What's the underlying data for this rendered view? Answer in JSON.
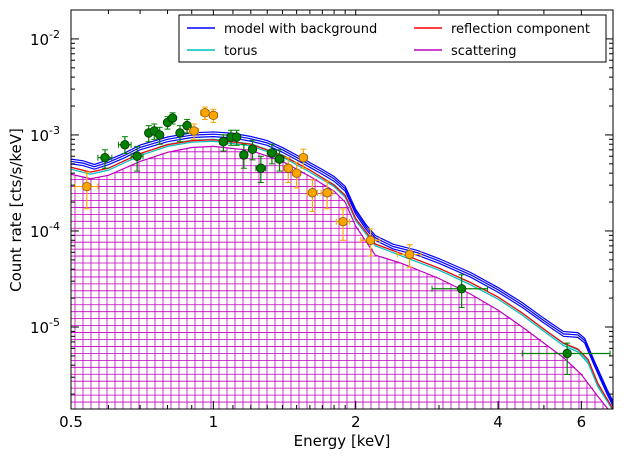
{
  "chart_data": {
    "type": "scatter",
    "xlabel": "Energy [keV]",
    "ylabel": "Count rate [cts/s/keV]",
    "xscale": "log",
    "yscale": "log",
    "xlim": [
      0.5,
      7.0
    ],
    "ylim": [
      1.4e-06,
      0.02
    ],
    "x_ticks": [
      {
        "value": 0.5,
        "label": "0.5"
      },
      {
        "value": 1,
        "label": "1"
      },
      {
        "value": 2,
        "label": "2"
      },
      {
        "value": 4,
        "label": "4"
      },
      {
        "value": 6,
        "label": "6"
      }
    ],
    "y_ticks": [
      {
        "value": 1e-05,
        "base": "10",
        "exp": "-5"
      },
      {
        "value": 0.0001,
        "base": "10",
        "exp": "-4"
      },
      {
        "value": 0.001,
        "base": "10",
        "exp": "-3"
      },
      {
        "value": 0.01,
        "base": "10",
        "exp": "-2"
      }
    ],
    "legend": {
      "position": "top-right",
      "columns": 2,
      "entries": [
        {
          "label": "model with background",
          "color": "#0000ff"
        },
        {
          "label": "reflection component",
          "color": "#ff0000"
        },
        {
          "label": "torus",
          "color": "#00bfbf"
        },
        {
          "label": "scattering",
          "color": "#bf00bf"
        }
      ]
    },
    "model_curves": [
      {
        "name": "model with background",
        "color": "#0000ff",
        "points": [
          [
            0.5,
            0.0005
          ],
          [
            0.53,
            0.00048
          ],
          [
            0.56,
            0.00044
          ],
          [
            0.6,
            0.00049
          ],
          [
            0.65,
            0.00058
          ],
          [
            0.7,
            0.0007
          ],
          [
            0.8,
            0.00085
          ],
          [
            0.9,
            0.00094
          ],
          [
            1.0,
            0.00096
          ],
          [
            1.1,
            0.00093
          ],
          [
            1.2,
            0.00086
          ],
          [
            1.3,
            0.00078
          ],
          [
            1.4,
            0.00066
          ],
          [
            1.5,
            0.00055
          ],
          [
            1.6,
            0.00046
          ],
          [
            1.7,
            0.00039
          ],
          [
            1.8,
            0.00033
          ],
          [
            1.9,
            0.00026
          ],
          [
            2.0,
            0.00015
          ],
          [
            2.1,
            0.000105
          ],
          [
            2.2,
            8e-05
          ],
          [
            2.4,
            6.5e-05
          ],
          [
            2.7,
            5.6e-05
          ],
          [
            3.0,
            4.6e-05
          ],
          [
            3.5,
            3.3e-05
          ],
          [
            4.0,
            2.3e-05
          ],
          [
            4.5,
            1.6e-05
          ],
          [
            5.0,
            1.1e-05
          ],
          [
            5.5,
            8e-06
          ],
          [
            5.9,
            7.8e-06
          ],
          [
            6.1,
            6.8e-06
          ],
          [
            6.4,
            3.9e-06
          ],
          [
            6.8,
            2e-06
          ],
          [
            7.0,
            1.5e-06
          ]
        ]
      },
      {
        "name": "reflection component",
        "color": "#ff0000",
        "points": [
          [
            0.5,
            0.00046
          ],
          [
            0.55,
            0.00041
          ],
          [
            0.6,
            0.00045
          ],
          [
            0.7,
            0.00064
          ],
          [
            0.8,
            0.00079
          ],
          [
            0.9,
            0.00087
          ],
          [
            1.0,
            0.00089
          ],
          [
            1.2,
            0.0008
          ],
          [
            1.4,
            0.00061
          ],
          [
            1.6,
            0.00043
          ],
          [
            1.8,
            0.0003
          ],
          [
            1.9,
            0.000235
          ],
          [
            2.0,
            0.000135
          ],
          [
            2.2,
            7.3e-05
          ],
          [
            2.5,
            5.8e-05
          ],
          [
            3.0,
            4.1e-05
          ],
          [
            3.5,
            2.9e-05
          ],
          [
            4.0,
            2.05e-05
          ],
          [
            4.5,
            1.4e-05
          ],
          [
            5.0,
            9.5e-06
          ],
          [
            5.5,
            6.8e-06
          ],
          [
            5.9,
            5.9e-06
          ],
          [
            6.2,
            4.6e-06
          ],
          [
            6.5,
            2.6e-06
          ],
          [
            7.0,
            1.4e-06
          ]
        ]
      },
      {
        "name": "torus",
        "color": "#00bfbf",
        "points": [
          [
            0.5,
            0.00044
          ],
          [
            0.55,
            0.00039
          ],
          [
            0.6,
            0.00043
          ],
          [
            0.7,
            0.00061
          ],
          [
            0.8,
            0.00076
          ],
          [
            0.9,
            0.00084
          ],
          [
            1.0,
            0.00086
          ],
          [
            1.2,
            0.00077
          ],
          [
            1.4,
            0.00059
          ],
          [
            1.6,
            0.00041
          ],
          [
            1.8,
            0.00029
          ],
          [
            1.9,
            0.000225
          ],
          [
            2.0,
            0.000128
          ],
          [
            2.2,
            7e-05
          ],
          [
            2.5,
            5.5e-05
          ],
          [
            3.0,
            3.9e-05
          ],
          [
            3.5,
            2.75e-05
          ],
          [
            4.0,
            1.95e-05
          ],
          [
            4.5,
            1.33e-05
          ],
          [
            5.0,
            9e-06
          ],
          [
            5.5,
            6.4e-06
          ],
          [
            5.9,
            5.5e-06
          ],
          [
            6.2,
            4.2e-06
          ],
          [
            6.5,
            2.4e-06
          ],
          [
            7.0,
            1.35e-06
          ]
        ]
      },
      {
        "name": "scattering",
        "color": "#bf00bf",
        "points": [
          [
            0.5,
            0.00039
          ],
          [
            0.55,
            0.00035
          ],
          [
            0.6,
            0.00038
          ],
          [
            0.7,
            0.00053
          ],
          [
            0.8,
            0.00066
          ],
          [
            0.9,
            0.00074
          ],
          [
            1.0,
            0.00076
          ],
          [
            1.2,
            0.00069
          ],
          [
            1.4,
            0.00053
          ],
          [
            1.6,
            0.00037
          ],
          [
            1.8,
            0.00026
          ],
          [
            1.9,
            0.0002
          ],
          [
            2.0,
            0.000112
          ],
          [
            2.2,
            5.6e-05
          ],
          [
            2.5,
            4.6e-05
          ],
          [
            3.0,
            3.2e-05
          ],
          [
            3.5,
            2.2e-05
          ],
          [
            4.0,
            1.5e-05
          ],
          [
            4.5,
            1e-05
          ],
          [
            5.0,
            6.8e-06
          ],
          [
            5.5,
            4.8e-06
          ],
          [
            6.0,
            3.2e-06
          ],
          [
            6.5,
            1.9e-06
          ],
          [
            7.0,
            1.2e-06
          ]
        ]
      }
    ],
    "data_series": [
      {
        "color": "#008000",
        "edge": "#003300",
        "points": [
          {
            "x": 0.59,
            "y": 0.00058,
            "xerr": [
              0.57,
              0.61
            ],
            "yerr": [
              0.00045,
              0.0007
            ]
          },
          {
            "x": 0.65,
            "y": 0.00079,
            "xerr": [
              0.63,
              0.67
            ],
            "yerr": [
              0.00064,
              0.00096
            ]
          },
          {
            "x": 0.69,
            "y": 0.0006,
            "xerr": [
              0.67,
              0.71
            ],
            "yerr": [
              0.00042,
              0.00076
            ]
          },
          {
            "x": 0.73,
            "y": 0.00105,
            "xerr": [
              0.72,
              0.74
            ],
            "yerr": [
              0.00085,
              0.00125
            ]
          },
          {
            "x": 0.75,
            "y": 0.0011,
            "xerr": [
              0.74,
              0.76
            ],
            "yerr": [
              0.0009,
              0.0013
            ]
          },
          {
            "x": 0.77,
            "y": 0.001,
            "xerr": [
              0.76,
              0.78
            ],
            "yerr": [
              0.0008,
              0.0012
            ]
          },
          {
            "x": 0.8,
            "y": 0.00135,
            "xerr": [
              0.79,
              0.81
            ],
            "yerr": [
              0.00115,
              0.00155
            ]
          },
          {
            "x": 0.82,
            "y": 0.0015,
            "xerr": [
              0.81,
              0.83
            ],
            "yerr": [
              0.0013,
              0.0017
            ]
          },
          {
            "x": 0.85,
            "y": 0.00105,
            "xerr": [
              0.84,
              0.86
            ],
            "yerr": [
              0.00085,
              0.00125
            ]
          },
          {
            "x": 0.88,
            "y": 0.00125,
            "xerr": [
              0.87,
              0.89
            ],
            "yerr": [
              0.00105,
              0.00145
            ]
          },
          {
            "x": 1.05,
            "y": 0.00085,
            "xerr": [
              1.03,
              1.07
            ],
            "yerr": [
              0.00068,
              0.001
            ]
          },
          {
            "x": 1.09,
            "y": 0.00095,
            "xerr": [
              1.07,
              1.11
            ],
            "yerr": [
              0.00078,
              0.00112
            ]
          },
          {
            "x": 1.12,
            "y": 0.00095,
            "xerr": [
              1.1,
              1.14
            ],
            "yerr": [
              0.00078,
              0.00112
            ]
          },
          {
            "x": 1.16,
            "y": 0.00062,
            "xerr": [
              1.14,
              1.18
            ],
            "yerr": [
              0.00045,
              0.0008
            ]
          },
          {
            "x": 1.21,
            "y": 0.00071,
            "xerr": [
              1.19,
              1.23
            ],
            "yerr": [
              0.00055,
              0.00088
            ]
          },
          {
            "x": 1.26,
            "y": 0.00045,
            "xerr": [
              1.23,
              1.29
            ],
            "yerr": [
              0.00032,
              0.0006
            ]
          },
          {
            "x": 1.33,
            "y": 0.00065,
            "xerr": [
              1.3,
              1.36
            ],
            "yerr": [
              0.0005,
              0.0008
            ]
          },
          {
            "x": 1.38,
            "y": 0.00056,
            "xerr": [
              1.35,
              1.41
            ],
            "yerr": [
              0.00042,
              0.0007
            ]
          },
          {
            "x": 3.35,
            "y": 2.5e-05,
            "xerr": [
              2.9,
              3.8
            ],
            "yerr": [
              1.6e-05,
              3.5e-05
            ]
          },
          {
            "x": 5.6,
            "y": 5.3e-06,
            "xerr": [
              4.5,
              6.9
            ],
            "yerr": [
              3.2e-06,
              6.8e-06
            ]
          }
        ]
      },
      {
        "color": "#ffa500",
        "edge": "#8a5a00",
        "points": [
          {
            "x": 0.54,
            "y": 0.00029,
            "xerr": [
              0.51,
              0.57
            ],
            "yerr": [
              0.00017,
              0.00041
            ]
          },
          {
            "x": 0.91,
            "y": 0.0011,
            "xerr": [
              0.89,
              0.93
            ],
            "yerr": [
              0.0009,
              0.0013
            ]
          },
          {
            "x": 0.96,
            "y": 0.0017,
            "xerr": [
              0.94,
              0.98
            ],
            "yerr": [
              0.00145,
              0.00195
            ]
          },
          {
            "x": 1.0,
            "y": 0.0016,
            "xerr": [
              0.98,
              1.02
            ],
            "yerr": [
              0.00135,
              0.00185
            ]
          },
          {
            "x": 1.44,
            "y": 0.00045,
            "xerr": [
              1.41,
              1.47
            ],
            "yerr": [
              0.00032,
              0.00058
            ]
          },
          {
            "x": 1.5,
            "y": 0.0004,
            "xerr": [
              1.47,
              1.53
            ],
            "yerr": [
              0.00028,
              0.00052
            ]
          },
          {
            "x": 1.55,
            "y": 0.00058,
            "xerr": [
              1.52,
              1.58
            ],
            "yerr": [
              0.00045,
              0.00071
            ]
          },
          {
            "x": 1.62,
            "y": 0.00025,
            "xerr": [
              1.58,
              1.66
            ],
            "yerr": [
              0.00016,
              0.00034
            ]
          },
          {
            "x": 1.74,
            "y": 0.00025,
            "xerr": [
              1.69,
              1.79
            ],
            "yerr": [
              0.00017,
              0.00033
            ]
          },
          {
            "x": 1.88,
            "y": 0.000125,
            "xerr": [
              1.82,
              1.94
            ],
            "yerr": [
              8e-05,
              0.00017
            ]
          },
          {
            "x": 2.15,
            "y": 8e-05,
            "xerr": [
              2.05,
              2.25
            ],
            "yerr": [
              5.5e-05,
              0.000105
            ]
          },
          {
            "x": 2.6,
            "y": 5.7e-05,
            "xerr": [
              2.45,
              2.75
            ],
            "yerr": [
              4.2e-05,
              7.2e-05
            ]
          }
        ]
      }
    ]
  }
}
